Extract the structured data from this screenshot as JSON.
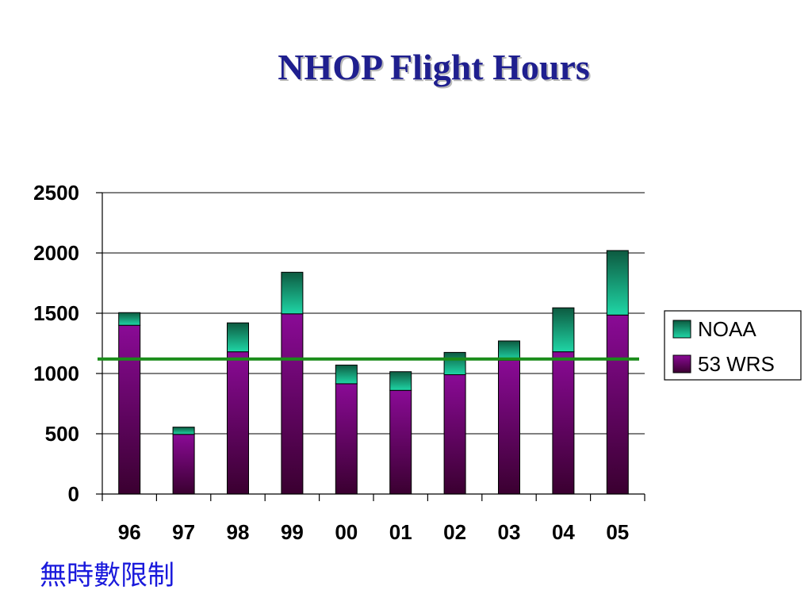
{
  "slide": {
    "title": "NHOP Flight Hours",
    "footnote": "無時數限制"
  },
  "colors": {
    "title": "#1f1f8f",
    "footnote": "#1a1adc",
    "noaa_top": "#0d5a40",
    "noaa_bottom": "#1fd6a6",
    "wrs_top": "#8a0a96",
    "wrs_bottom": "#3a0030",
    "reference_line": "#1a8c1a"
  },
  "chart_data": {
    "type": "bar",
    "stacked": true,
    "categories": [
      "96",
      "97",
      "98",
      "99",
      "00",
      "01",
      "02",
      "03",
      "04",
      "05"
    ],
    "series": [
      {
        "name": "53 WRS",
        "values": [
          1400,
          495,
          1180,
          1495,
          915,
          860,
          990,
          1110,
          1180,
          1485
        ]
      },
      {
        "name": "NOAA",
        "values": [
          105,
          60,
          240,
          345,
          155,
          155,
          185,
          160,
          365,
          535
        ]
      }
    ],
    "reference_line": 1120,
    "ylim": [
      0,
      2500
    ],
    "yticks": [
      "0",
      "500",
      "1000",
      "1500",
      "2000",
      "2500"
    ],
    "ytick_values": [
      0,
      500,
      1000,
      1500,
      2000,
      2500
    ],
    "grid": true,
    "legend": {
      "position": "right",
      "entries": [
        "NOAA",
        "53 WRS"
      ]
    }
  }
}
